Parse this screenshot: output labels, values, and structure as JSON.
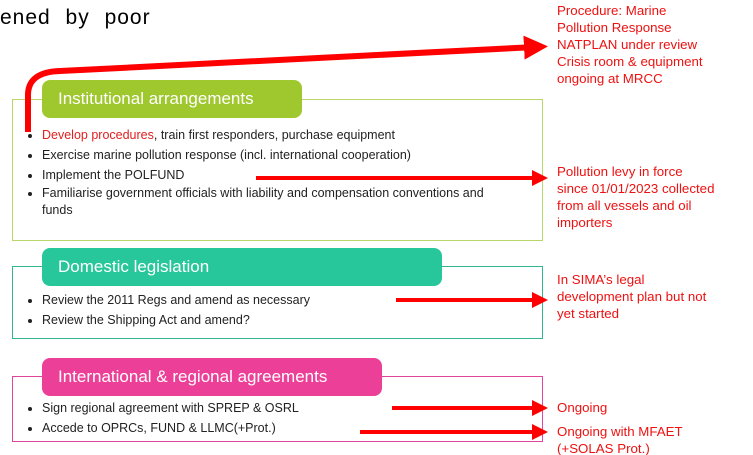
{
  "top_text": "ened by poor",
  "sections": [
    {
      "header": "Institutional arrangements",
      "bullets": [
        [
          "Develop procedures",
          ", train first responders, purchase equipment"
        ],
        [
          "Exercise marine pollution response (incl. international cooperation)"
        ],
        [
          "Implement the POLFUND"
        ],
        [
          "Familiarise government officials with liability and compensation conventions and funds"
        ]
      ]
    },
    {
      "header": "Domestic legislation",
      "bullets": [
        [
          "Review the 2011 Regs and amend as necessary"
        ],
        [
          "Review the Shipping Act and amend?"
        ]
      ]
    },
    {
      "header": "International & regional agreements",
      "bullets": [
        [
          "Sign regional agreement with SPREP & OSRL"
        ],
        [
          "Accede to OPRCs, FUND & LLMC(+Prot.)"
        ]
      ]
    }
  ],
  "annotations": [
    {
      "lines": [
        "Procedure: Marine",
        "Pollution Response",
        "NATPLAN under review",
        "Crisis room & equipment",
        "ongoing at MRCC"
      ]
    },
    {
      "lines": [
        "Pollution levy in force",
        "since 01/01/2023 collected",
        "from all vessels and oil",
        "importers"
      ]
    },
    {
      "lines": [
        "In SIMA’s legal",
        "development plan but not",
        "yet started"
      ]
    },
    {
      "lines": [
        "Ongoing"
      ]
    },
    {
      "lines": [
        "Ongoing with MFAET",
        "(+SOLAS Prot.)"
      ]
    }
  ]
}
